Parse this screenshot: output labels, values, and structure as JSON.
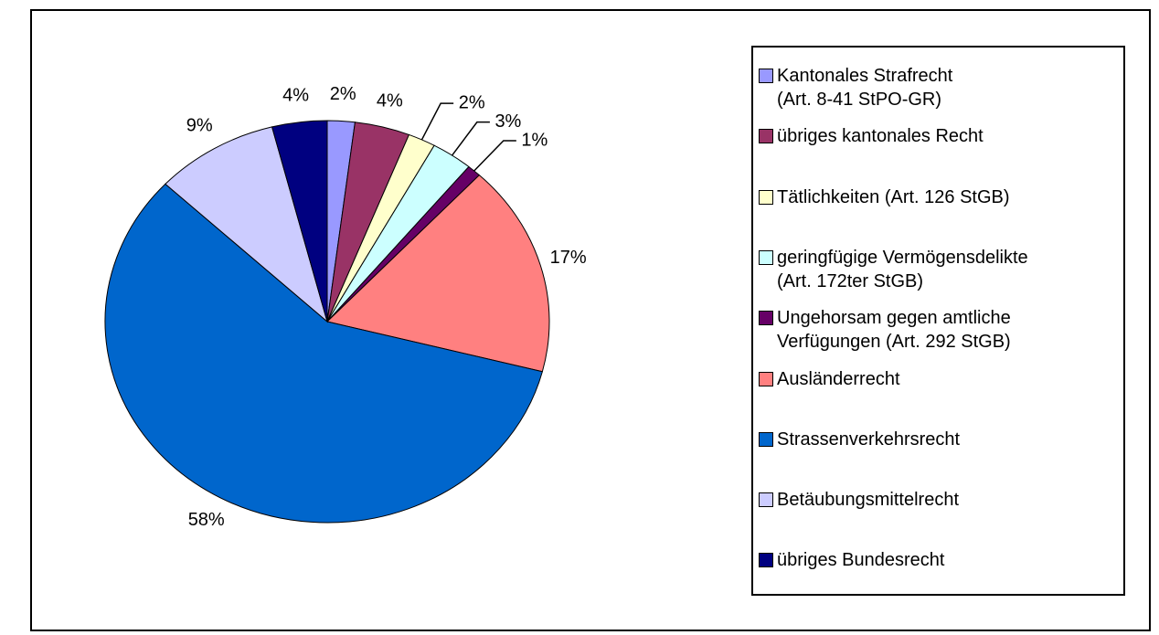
{
  "chart_data": {
    "type": "pie",
    "categories": [
      "Kantonales Strafrecht\n(Art. 8-41 StPO-GR)",
      "übriges kantonales Recht",
      "Tätlichkeiten (Art. 126 StGB)",
      "geringfügige Vermögensdelikte\n(Art. 172ter StGB)",
      "Ungehorsam gegen amtliche\nVerfügungen (Art. 292 StGB)",
      "Ausländerrecht",
      "Strassenverkehrsrecht",
      "Betäubungsmittelrecht",
      "übriges Bundesrecht"
    ],
    "values": [
      2,
      4,
      2,
      3,
      1,
      17,
      58,
      9,
      4
    ],
    "value_labels": [
      "2%",
      "4%",
      "2%",
      "3%",
      "1%",
      "17%",
      "58%",
      "9%",
      "4%"
    ],
    "colors": [
      "#9999ff",
      "#993366",
      "#ffffcc",
      "#ccffff",
      "#660066",
      "#ff8080",
      "#0066cc",
      "#ccccff",
      "#000080"
    ],
    "legend": "right"
  }
}
